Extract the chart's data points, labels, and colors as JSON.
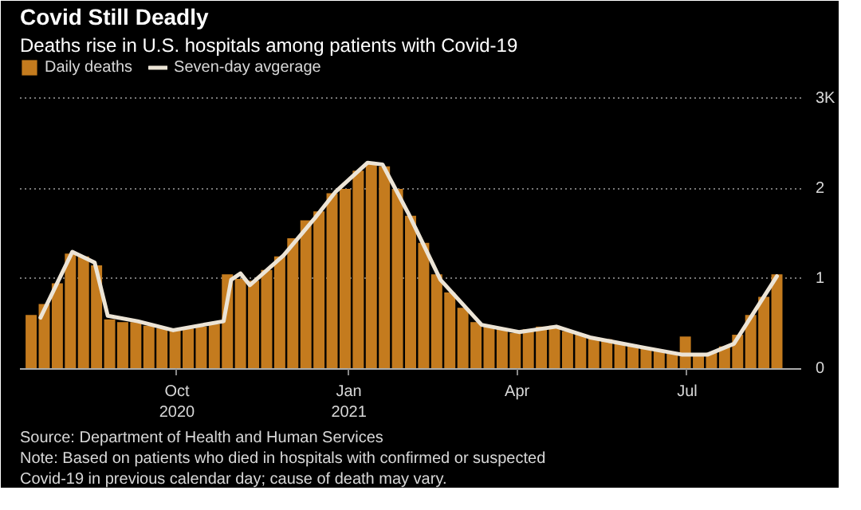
{
  "chart_data": {
    "type": "bar",
    "title": "Covid Still Deadly",
    "subtitle": "Deaths rise in U.S. hospitals among patients with Covid-19",
    "xlim": [
      "2020-07-09",
      "2021-08-31"
    ],
    "xticks": [
      {
        "value": "2020-10-01",
        "label": "Oct\n2020"
      },
      {
        "value": "2021-01-01",
        "label": "Jan\n2021"
      },
      {
        "value": "2021-04-01",
        "label": "Apr"
      },
      {
        "value": "2021-07-01",
        "label": "Jul"
      }
    ],
    "ylim": [
      0,
      3.45
    ],
    "yticks": [
      0,
      1,
      2,
      {
        "value": 3,
        "label": "3K"
      }
    ],
    "grid": "y",
    "legend": "top left",
    "series": [
      {
        "name": "Daily deaths",
        "color": "#c47b1e",
        "x": [
          "2020-07-15",
          "2020-07-22",
          "2020-07-29",
          "2020-08-05",
          "2020-08-12",
          "2020-08-19",
          "2020-08-26",
          "2020-09-02",
          "2020-09-09",
          "2020-09-16",
          "2020-09-23",
          "2020-09-30",
          "2020-10-07",
          "2020-10-14",
          "2020-10-21",
          "2020-10-28",
          "2020-11-04",
          "2020-11-11",
          "2020-11-18",
          "2020-11-25",
          "2020-12-02",
          "2020-12-09",
          "2020-12-16",
          "2020-12-23",
          "2020-12-30",
          "2021-01-06",
          "2021-01-13",
          "2021-01-20",
          "2021-01-27",
          "2021-02-03",
          "2021-02-10",
          "2021-02-17",
          "2021-02-24",
          "2021-03-03",
          "2021-03-10",
          "2021-03-17",
          "2021-03-24",
          "2021-03-31",
          "2021-04-07",
          "2021-04-14",
          "2021-04-21",
          "2021-04-28",
          "2021-05-05",
          "2021-05-12",
          "2021-05-19",
          "2021-05-26",
          "2021-06-02",
          "2021-06-09",
          "2021-06-16",
          "2021-06-23",
          "2021-06-30",
          "2021-07-07",
          "2021-07-14",
          "2021-07-21",
          "2021-07-28",
          "2021-08-04",
          "2021-08-11",
          "2021-08-18"
        ],
        "values": [
          0.6,
          0.72,
          0.95,
          1.28,
          1.25,
          1.15,
          0.55,
          0.52,
          0.52,
          0.48,
          0.45,
          0.44,
          0.45,
          0.47,
          0.5,
          1.05,
          1.0,
          0.98,
          1.1,
          1.25,
          1.45,
          1.65,
          1.75,
          1.95,
          2.0,
          2.2,
          2.28,
          2.25,
          2.0,
          1.7,
          1.4,
          1.05,
          0.85,
          0.68,
          0.52,
          0.48,
          0.44,
          0.4,
          0.44,
          0.47,
          0.48,
          0.42,
          0.38,
          0.35,
          0.33,
          0.29,
          0.26,
          0.23,
          0.2,
          0.17,
          0.36,
          0.16,
          0.18,
          0.25,
          0.38,
          0.6,
          0.8,
          1.05
        ]
      },
      {
        "name": "Seven-day avgerage",
        "type": "line",
        "color": "#ece4d6",
        "x": [
          "2020-07-20",
          "2020-07-27",
          "2020-08-06",
          "2020-08-18",
          "2020-08-25",
          "2020-09-10",
          "2020-09-29",
          "2020-10-26",
          "2020-10-30",
          "2020-11-04",
          "2020-11-09",
          "2020-11-27",
          "2020-12-14",
          "2020-12-25",
          "2021-01-11",
          "2021-01-19",
          "2021-02-02",
          "2021-02-19",
          "2021-03-13",
          "2021-04-02",
          "2021-04-22",
          "2021-05-10",
          "2021-06-07",
          "2021-06-28",
          "2021-07-12",
          "2021-07-26",
          "2021-08-18"
        ],
        "values": [
          0.57,
          0.87,
          1.3,
          1.18,
          0.59,
          0.53,
          0.43,
          0.53,
          0.99,
          1.06,
          0.93,
          1.26,
          1.68,
          1.97,
          2.29,
          2.27,
          1.72,
          0.99,
          0.49,
          0.41,
          0.47,
          0.35,
          0.24,
          0.16,
          0.16,
          0.28,
          1.03
        ]
      }
    ],
    "annotations": [
      "Source: Department of Health and Human Services",
      "Note: Based on patients who died in hospitals with confirmed or suspected Covid-19 in previous calendar day; cause of death may vary."
    ]
  }
}
